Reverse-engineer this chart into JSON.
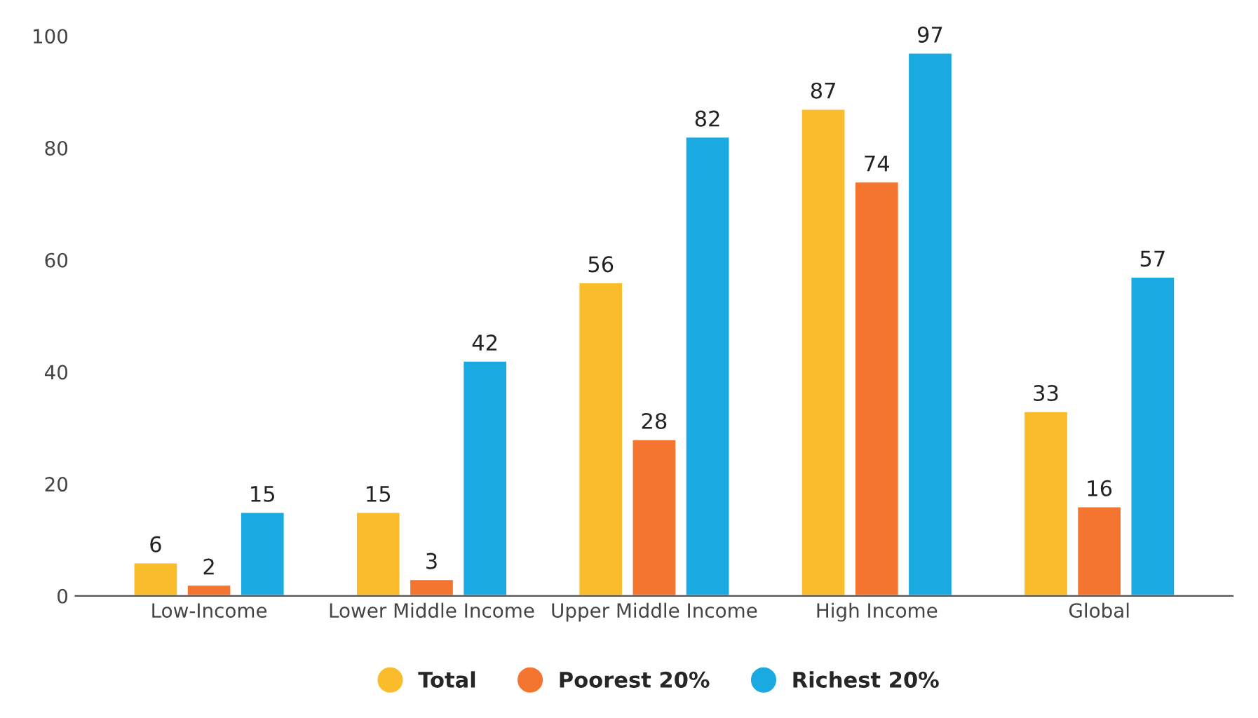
{
  "chart_data": {
    "type": "bar",
    "categories": [
      "Low-Income",
      "Lower Middle Income",
      "Upper Middle Income",
      "High Income",
      "Global"
    ],
    "series": [
      {
        "name": "Total",
        "color": "#fbbc2c",
        "values": [
          6,
          15,
          56,
          87,
          33
        ]
      },
      {
        "name": "Poorest 20%",
        "color": "#f37530",
        "values": [
          2,
          3,
          28,
          74,
          16
        ]
      },
      {
        "name": "Richest 20%",
        "color": "#1aa9e0",
        "values": [
          15,
          42,
          82,
          97,
          57
        ]
      }
    ],
    "ylim": [
      0,
      100
    ],
    "yticks": [
      0,
      20,
      40,
      60,
      80,
      100
    ],
    "data_labels": true,
    "grid": false,
    "legend": "bottom"
  }
}
